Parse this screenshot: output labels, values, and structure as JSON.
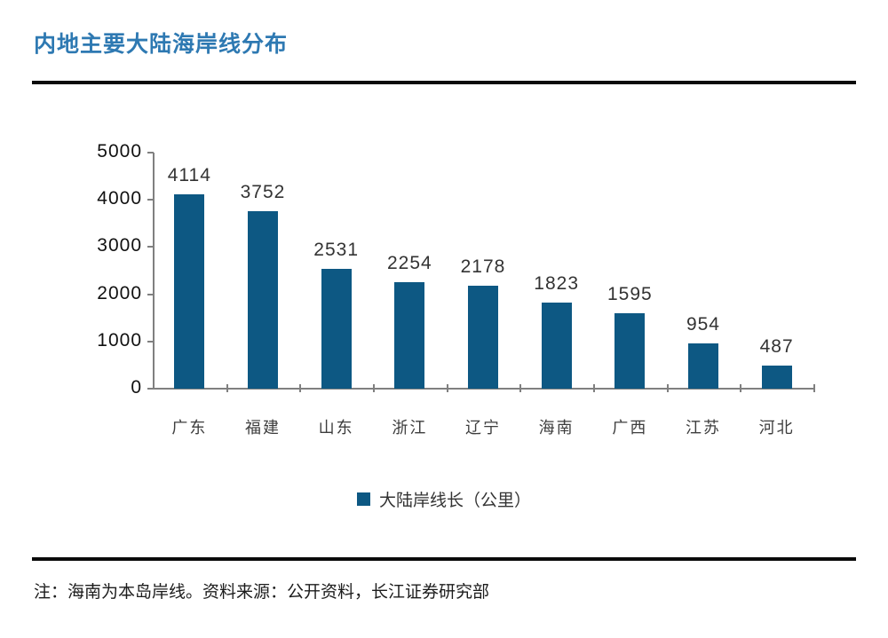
{
  "page": {
    "title": "内地主要大陆海岸线分布",
    "note": "注：海南为本岛岸线。资料来源：公开资料，长江证券研究部"
  },
  "colors": {
    "bar": "#0D5883",
    "title": "#2E79B2",
    "axis": "#808080"
  },
  "legend": {
    "label": "大陆岸线长（公里）"
  },
  "chart_data": {
    "type": "bar",
    "title": "内地主要大陆海岸线分布",
    "categories": [
      "广东",
      "福建",
      "山东",
      "浙江",
      "辽宁",
      "海南",
      "广西",
      "江苏",
      "河北"
    ],
    "values": [
      4114,
      3752,
      2531,
      2254,
      2178,
      1823,
      1595,
      954,
      487
    ],
    "series_name": "大陆岸线长（公里）",
    "xlabel": "",
    "ylabel": "",
    "ylim": [
      0,
      5000
    ],
    "ytick_step": 1000,
    "ytick_labels": [
      "0",
      "1000",
      "2000",
      "3000",
      "4000",
      "5000"
    ],
    "grid": false,
    "legend_position": "bottom",
    "data_labels": true,
    "bar_color": "#0D5883"
  }
}
